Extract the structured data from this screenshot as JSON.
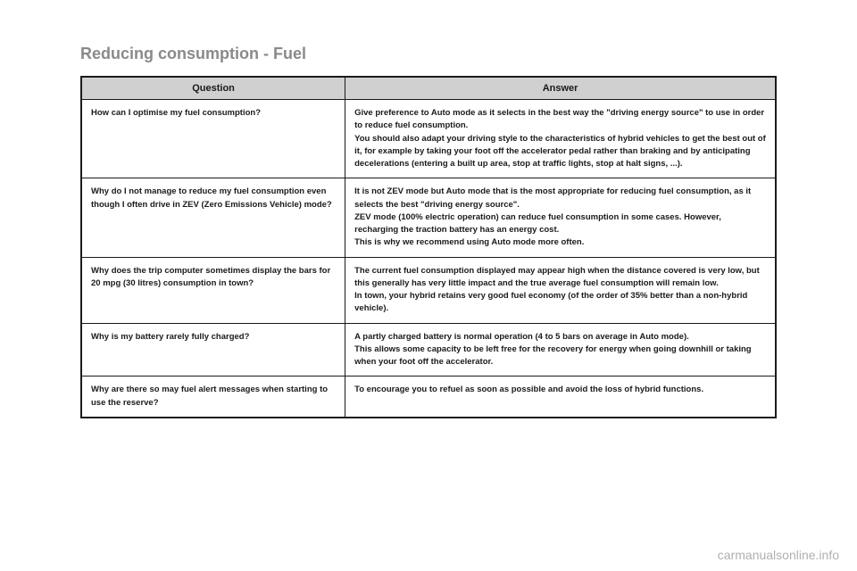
{
  "title": "Reducing consumption - Fuel",
  "table": {
    "headers": {
      "question": "Question",
      "answer": "Answer"
    },
    "rows": [
      {
        "question": "How can I optimise my fuel consumption?",
        "answer": "Give preference to Auto mode as it selects in the best way the \"driving energy source\" to use in order to reduce fuel consumption.\nYou should also adapt your driving style to the characteristics of hybrid vehicles to get the best out of it, for example by taking your foot off the accelerator pedal rather than braking and by anticipating decelerations (entering a built up area, stop at traffic lights, stop at halt signs, ...)."
      },
      {
        "question": "Why do I not manage to reduce my fuel consumption even though I often drive in ZEV (Zero Emissions Vehicle) mode?",
        "answer": "It is not ZEV mode but Auto mode that is the most appropriate for reducing fuel consumption, as it selects the best \"driving energy source\".\nZEV mode (100% electric operation) can reduce fuel consumption in some cases. However, recharging the traction battery has an energy cost.\nThis is why we recommend using Auto mode more often."
      },
      {
        "question": "Why does the trip computer sometimes display the bars for 20 mpg (30 litres) consumption in town?",
        "answer": "The current fuel consumption displayed may appear high when the distance covered is very low, but this generally has very little impact and the true average fuel consumption will remain low.\nIn town, your hybrid retains very good fuel economy (of the order of 35% better than a non-hybrid vehicle)."
      },
      {
        "question": "Why is my battery rarely fully charged?",
        "answer": "A partly charged battery is normal operation (4 to 5 bars on average in Auto mode).\nThis allows some capacity to be left free for the recovery for energy when going downhill or taking when your foot off the accelerator."
      },
      {
        "question": "Why are there so may fuel alert messages when starting to use the reserve?",
        "answer": "To encourage you to refuel as soon as possible and avoid the loss of hybrid functions."
      }
    ]
  },
  "footer": "carmanualsonline.info"
}
